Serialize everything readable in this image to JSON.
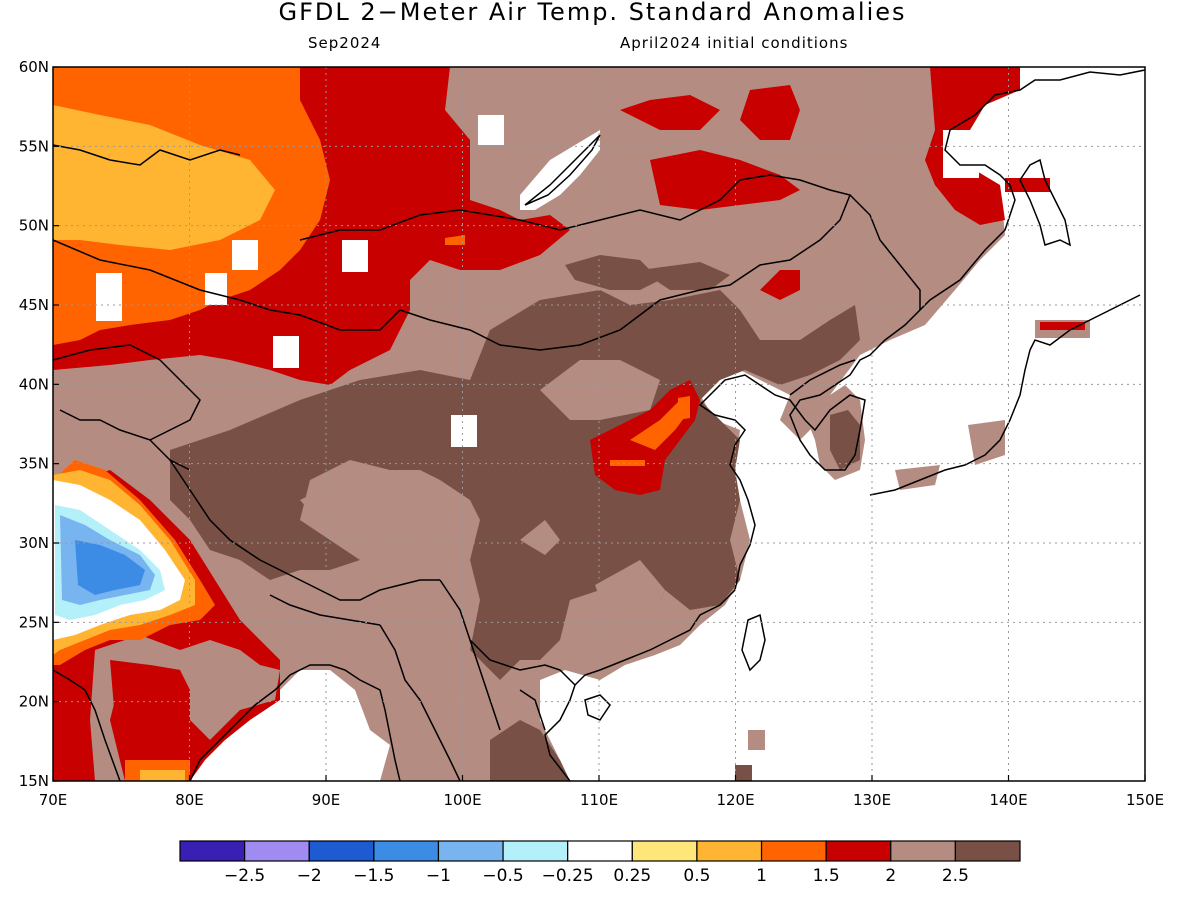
{
  "title": "GFDL 2−Meter Air Temp. Standard Anomalies",
  "valid_month": "Sep2024",
  "initial_conditions": "April2024 initial conditions",
  "map": {
    "lon_range": [
      70,
      150
    ],
    "lat_range": [
      15,
      60
    ],
    "lon_ticks": [
      "70E",
      "80E",
      "90E",
      "100E",
      "110E",
      "120E",
      "130E",
      "140E",
      "150E"
    ],
    "lat_ticks": [
      "60N",
      "55N",
      "50N",
      "45N",
      "40N",
      "35N",
      "30N",
      "25N",
      "20N",
      "15N"
    ],
    "grid": "dotted"
  },
  "colorbar": {
    "colors": [
      "#3a1fb4",
      "#a08cf0",
      "#1e5ad2",
      "#3c8ce6",
      "#78b4f0",
      "#b4f0fa",
      "#ffffff",
      "#ffe67a",
      "#ffb432",
      "#ff6400",
      "#c80000",
      "#b48c82",
      "#785046"
    ],
    "labels": [
      "−2.5",
      "−2",
      "−1.5",
      "−1",
      "−0.5",
      "−0.25",
      "0.25",
      "0.5",
      "1",
      "1.5",
      "2",
      "2.5"
    ]
  },
  "regions": {
    "ocean": "#ffffff",
    "land_default": "#b48c82",
    "land_high": "#785046",
    "warm": "#c80000",
    "warmer": "#ff6400",
    "warmest": "#ffb432",
    "near_zero": "#ffe67a",
    "cool": "#b4f0fa",
    "cooler": "#78b4f0",
    "coolest": "#3c8ce6"
  }
}
